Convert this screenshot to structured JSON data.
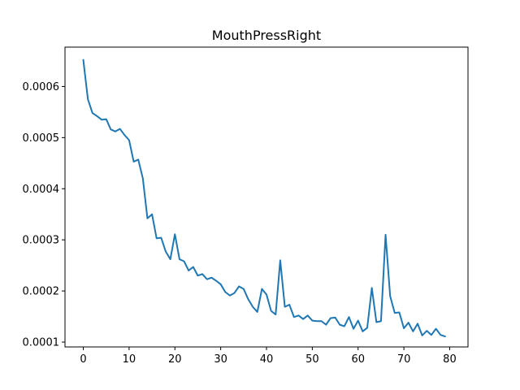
{
  "chart_data": {
    "type": "line",
    "title": "MouthPressRight",
    "xlabel": "",
    "ylabel": "",
    "xlim": [
      -4,
      84
    ],
    "ylim": [
      9.05e-05,
      0.000677
    ],
    "grid": false,
    "x_ticks": [
      0,
      10,
      20,
      30,
      40,
      50,
      60,
      70,
      80
    ],
    "x_tick_labels": [
      "0",
      "10",
      "20",
      "30",
      "40",
      "50",
      "60",
      "70",
      "80"
    ],
    "y_ticks": [
      0.0001,
      0.0002,
      0.0003,
      0.0004,
      0.0005,
      0.0006
    ],
    "y_tick_labels": [
      "0.0001",
      "0.0002",
      "0.0003",
      "0.0004",
      "0.0005",
      "0.0006"
    ],
    "series": [
      {
        "color": "#1f77b4",
        "x": [
          0,
          1,
          2,
          3,
          4,
          5,
          6,
          7,
          8,
          9,
          10,
          11,
          12,
          13,
          14,
          15,
          16,
          17,
          18,
          19,
          20,
          21,
          22,
          23,
          24,
          25,
          26,
          27,
          28,
          29,
          30,
          31,
          32,
          33,
          34,
          35,
          36,
          37,
          38,
          39,
          40,
          41,
          42,
          43,
          44,
          45,
          46,
          47,
          48,
          49,
          50,
          51,
          52,
          53,
          54,
          55,
          56,
          57,
          58,
          59,
          60,
          61,
          62,
          63,
          64,
          65,
          66,
          67,
          68,
          69,
          70,
          71,
          72,
          73,
          74,
          75,
          76,
          77,
          78,
          79
        ],
        "y": [
          0.000652,
          0.000575,
          0.000548,
          0.000542,
          0.000535,
          0.000536,
          0.000516,
          0.000512,
          0.000517,
          0.000505,
          0.000495,
          0.000453,
          0.000457,
          0.00042,
          0.000342,
          0.00035,
          0.000303,
          0.000304,
          0.000277,
          0.000262,
          0.000311,
          0.000262,
          0.000258,
          0.00024,
          0.000247,
          0.00023,
          0.000233,
          0.000223,
          0.000226,
          0.00022,
          0.000213,
          0.000198,
          0.000191,
          0.000196,
          0.000209,
          0.000204,
          0.000184,
          0.000169,
          0.000159,
          0.000204,
          0.000193,
          0.000161,
          0.000154,
          0.00026,
          0.000169,
          0.000173,
          0.000149,
          0.000152,
          0.000145,
          0.000152,
          0.000142,
          0.000141,
          0.000141,
          0.000134,
          0.000147,
          0.000148,
          0.000134,
          0.000131,
          0.000149,
          0.000126,
          0.000142,
          0.000121,
          0.000128,
          0.000206,
          0.000139,
          0.000141,
          0.00031,
          0.00019,
          0.000157,
          0.000158,
          0.000127,
          0.000138,
          0.000121,
          0.000136,
          0.000113,
          0.000122,
          0.000114,
          0.000126,
          0.000114,
          0.000111
        ]
      }
    ]
  }
}
